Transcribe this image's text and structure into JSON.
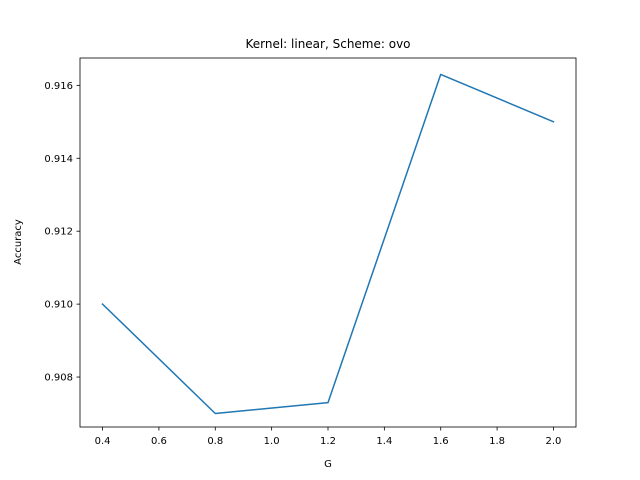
{
  "chart_data": {
    "type": "line",
    "title": "Kernel: linear, Scheme: ovo",
    "xlabel": "G",
    "ylabel": "Accuracy",
    "xlim": [
      0.32,
      2.08
    ],
    "ylim": [
      0.90663,
      0.91675
    ],
    "xticks": [
      0.4,
      0.6,
      0.8,
      1.0,
      1.2,
      1.4,
      1.6,
      1.8,
      2.0
    ],
    "xtick_labels": [
      "0.4",
      "0.6",
      "0.8",
      "1.0",
      "1.2",
      "1.4",
      "1.6",
      "1.8",
      "2.0"
    ],
    "yticks": [
      0.908,
      0.91,
      0.912,
      0.914,
      0.916
    ],
    "ytick_labels": [
      "0.908",
      "0.910",
      "0.912",
      "0.914",
      "0.916"
    ],
    "grid": false,
    "series": [
      {
        "color": "#1f77b4",
        "x": [
          0.4,
          0.8,
          1.2,
          1.6,
          2.0
        ],
        "y": [
          0.91,
          0.907,
          0.9073,
          0.9163,
          0.915
        ]
      }
    ]
  }
}
